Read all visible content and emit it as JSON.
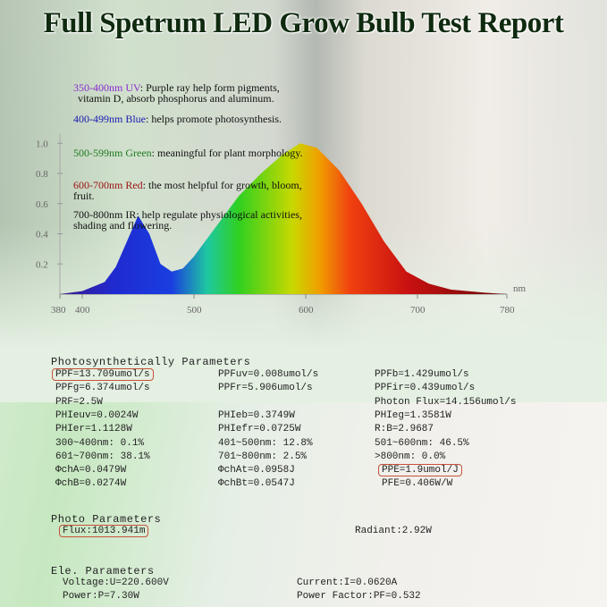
{
  "title": "Full Spetrum LED Grow Bulb Test Report",
  "bands": [
    {
      "label": "350-400nm UV",
      "color": "#8a2bd0",
      "text": ": Purple ray help form pigments,",
      "text2": "vitamin D, absorb phosphorus and aluminum."
    },
    {
      "label": "400-499nm Blue",
      "color": "#1a1ab0",
      "text": ": helps promote photosynthesis.",
      "text2": ""
    },
    {
      "label": "500-599nm Green",
      "color": "#1d7a1d",
      "text": ": meaningful for plant morphology.",
      "text2": ""
    },
    {
      "label": "600-700nm Red",
      "color": "#9a1010",
      "text": ": the most helpful for growth, bloom,",
      "text2": "fruit."
    },
    {
      "label": "700-800nm IR",
      "color": "#111111",
      "text": ":  help regulate physiological activities,",
      "text2": "shading and flowering."
    }
  ],
  "chart_data": {
    "type": "area",
    "xlabel": "nm",
    "ylabel": "",
    "xlim": [
      380,
      780
    ],
    "ylim": [
      0,
      1.0
    ],
    "x_ticks": [
      "380",
      "400",
      "500",
      "600",
      "700",
      "780"
    ],
    "y_ticks": [
      "0.2",
      "0.4",
      "0.6",
      "0.8",
      "1.0"
    ],
    "x": [
      380,
      400,
      420,
      430,
      440,
      450,
      460,
      470,
      480,
      490,
      500,
      520,
      540,
      560,
      580,
      595,
      610,
      630,
      650,
      670,
      690,
      710,
      730,
      760,
      780
    ],
    "y": [
      0,
      0.02,
      0.08,
      0.18,
      0.35,
      0.52,
      0.4,
      0.2,
      0.15,
      0.17,
      0.25,
      0.45,
      0.65,
      0.8,
      0.93,
      1.0,
      0.97,
      0.82,
      0.6,
      0.35,
      0.15,
      0.07,
      0.03,
      0.01,
      0
    ]
  },
  "photo": {
    "heading": "Photosynthetically Parameters",
    "col1": [
      "PPF=13.709umol/s",
      "PPFg=6.374umol/s",
      "PRF=2.5W",
      "PHIeuv=0.0024W",
      "PHIer=1.1128W",
      "300~400nm: 0.1%",
      "601~700nm: 38.1%",
      "ΦchA=0.0479W",
      "ΦchB=0.0274W"
    ],
    "col2": [
      "PPFuv=0.008umol/s",
      "PPFr=5.906umol/s",
      "",
      "PHIeb=0.3749W",
      "PHIefr=0.0725W",
      "401~500nm: 12.8%",
      "701~800nm: 2.5%",
      "ΦchAt=0.0958J",
      "ΦchBt=0.0547J"
    ],
    "col3": [
      "PPFb=1.429umol/s",
      "PPFir=0.439umol/s",
      "Photon Flux=14.156umol/s",
      "PHIeg=1.3581W",
      "R:B=2.9687",
      "501~600nm: 46.5%",
      ">800nm: 0.0%",
      "PPE=1.9umol/J",
      "PFE=0.406W/W"
    ]
  },
  "photo2": {
    "heading": "Photo Parameters",
    "flux": "Flux:1013.941m",
    "radiant": "Radiant:2.92W"
  },
  "ele": {
    "heading": "Ele. Parameters",
    "voltage": "Voltage:U=220.600V",
    "current": "Current:I=0.0620A",
    "power": "Power:P=7.30W",
    "pf": "Power Factor:PF=0.532"
  }
}
